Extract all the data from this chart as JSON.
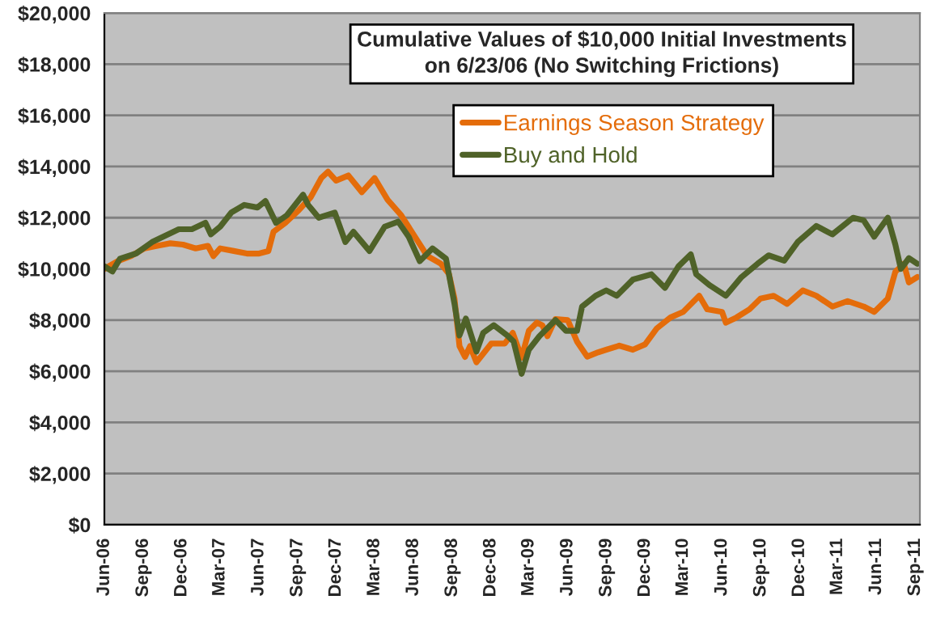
{
  "chart_data": {
    "type": "line",
    "title": "Cumulative Values of $10,000 Initial Investments\non 6/23/06 (No Switching Frictions)",
    "series": [
      {
        "name": "Earnings Season Strategy",
        "color": "#e46c0a",
        "x": [
          "2006-06-01",
          "2006-07-02",
          "2006-08-03",
          "2006-09-04",
          "2006-10-04",
          "2006-11-04",
          "2006-12-04",
          "2007-01-03",
          "2007-02-01",
          "2007-02-14",
          "2007-03-02",
          "2007-04-03",
          "2007-05-04",
          "2007-06-02",
          "2007-06-24",
          "2007-07-06",
          "2007-08-03",
          "2007-09-04",
          "2007-10-02",
          "2007-10-27",
          "2007-11-12",
          "2007-12-01",
          "2007-12-30",
          "2008-01-31",
          "2008-03-01",
          "2008-04-01",
          "2008-05-03",
          "2008-06-01",
          "2008-07-04",
          "2008-08-05",
          "2008-08-24",
          "2008-09-06",
          "2008-09-18",
          "2008-10-01",
          "2008-10-13",
          "2008-10-28",
          "2008-12-02",
          "2009-01-03",
          "2009-01-22",
          "2009-02-12",
          "2009-03-01",
          "2009-03-20",
          "2009-04-02",
          "2009-04-14",
          "2009-05-03",
          "2009-06-01",
          "2009-06-23",
          "2009-07-17",
          "2009-08-12",
          "2009-08-31",
          "2009-10-01",
          "2009-11-02",
          "2009-12-01",
          "2009-12-29",
          "2010-01-30",
          "2010-03-01",
          "2010-04-08",
          "2010-04-27",
          "2010-06-01",
          "2010-06-10",
          "2010-07-05",
          "2010-08-05",
          "2010-08-31",
          "2010-10-01",
          "2010-11-02",
          "2010-12-09",
          "2011-01-10",
          "2011-02-17",
          "2011-03-25",
          "2011-05-02",
          "2011-05-27",
          "2011-06-28",
          "2011-07-16",
          "2011-08-05",
          "2011-08-17",
          "2011-09-06"
        ],
        "values": [
          10000,
          10300,
          10500,
          10800,
          10900,
          11000,
          10950,
          10800,
          10900,
          10500,
          10800,
          10700,
          10600,
          10600,
          10700,
          11450,
          11800,
          12300,
          12800,
          13550,
          13800,
          13450,
          13650,
          13000,
          13550,
          12700,
          12100,
          11350,
          10500,
          10200,
          9800,
          8850,
          6980,
          6560,
          6980,
          6350,
          7080,
          7080,
          7500,
          6530,
          7580,
          7900,
          7800,
          7370,
          8040,
          8000,
          7160,
          6570,
          6740,
          6840,
          7000,
          6840,
          7050,
          7680,
          8100,
          8320,
          8950,
          8420,
          8320,
          7900,
          8100,
          8420,
          8840,
          8950,
          8630,
          9160,
          8950,
          8530,
          8740,
          8530,
          8320,
          8840,
          9890,
          10200,
          9470,
          9680
        ]
      },
      {
        "name": "Buy and Hold",
        "color": "#4f6228",
        "x": [
          "2006-06-01",
          "2006-06-20",
          "2006-07-08",
          "2006-08-15",
          "2006-09-22",
          "2006-10-30",
          "2006-11-24",
          "2006-12-25",
          "2007-01-26",
          "2007-02-08",
          "2007-03-02",
          "2007-03-28",
          "2007-04-28",
          "2007-05-29",
          "2007-06-17",
          "2007-07-12",
          "2007-08-07",
          "2007-09-14",
          "2007-09-26",
          "2007-10-21",
          "2007-11-28",
          "2007-12-23",
          "2008-01-11",
          "2008-02-18",
          "2008-03-25",
          "2008-04-26",
          "2008-05-21",
          "2008-06-16",
          "2008-07-16",
          "2008-08-17",
          "2008-09-06",
          "2008-09-18",
          "2008-10-03",
          "2008-10-28",
          "2008-11-13",
          "2008-12-08",
          "2009-01-09",
          "2009-01-24",
          "2009-02-12",
          "2009-03-01",
          "2009-03-26",
          "2009-05-03",
          "2009-05-28",
          "2009-06-23",
          "2009-07-05",
          "2009-08-06",
          "2009-08-31",
          "2009-09-25",
          "2009-11-02",
          "2009-12-16",
          "2010-01-17",
          "2010-02-18",
          "2010-03-19",
          "2010-04-01",
          "2010-05-02",
          "2010-06-10",
          "2010-07-17",
          "2010-08-24",
          "2010-09-19",
          "2010-10-26",
          "2010-11-27",
          "2011-01-10",
          "2011-02-17",
          "2011-04-07",
          "2011-05-02",
          "2011-05-27",
          "2011-06-28",
          "2011-07-16",
          "2011-07-29",
          "2011-08-17",
          "2011-09-06"
        ],
        "values": [
          10100,
          9900,
          10400,
          10600,
          11050,
          11350,
          11550,
          11550,
          11800,
          11350,
          11650,
          12200,
          12500,
          12400,
          12650,
          11800,
          12100,
          12900,
          12500,
          12000,
          12200,
          11050,
          11450,
          10700,
          11650,
          11850,
          11250,
          10300,
          10800,
          10400,
          8650,
          7400,
          8060,
          6770,
          7500,
          7800,
          7400,
          7160,
          5900,
          6840,
          7370,
          8000,
          7580,
          7580,
          8530,
          8950,
          9160,
          8950,
          9580,
          9790,
          9260,
          10100,
          10570,
          9790,
          9370,
          8950,
          9680,
          10200,
          10530,
          10320,
          11050,
          11680,
          11350,
          12000,
          11900,
          11260,
          12000,
          10950,
          10000,
          10420,
          10200
        ]
      }
    ],
    "xlim": [
      "2006-06-01",
      "2011-09-12"
    ],
    "xticks": [
      {
        "value": "2006-06-01",
        "label": "Jun-06"
      },
      {
        "value": "2006-09-01",
        "label": "Sep-06"
      },
      {
        "value": "2006-12-01",
        "label": "Dec-06"
      },
      {
        "value": "2007-03-01",
        "label": "Mar-07"
      },
      {
        "value": "2007-06-01",
        "label": "Jun-07"
      },
      {
        "value": "2007-09-01",
        "label": "Sep-07"
      },
      {
        "value": "2007-12-01",
        "label": "Dec-07"
      },
      {
        "value": "2008-03-01",
        "label": "Mar-08"
      },
      {
        "value": "2008-06-01",
        "label": "Jun-08"
      },
      {
        "value": "2008-09-01",
        "label": "Sep-08"
      },
      {
        "value": "2008-12-01",
        "label": "Dec-08"
      },
      {
        "value": "2009-03-01",
        "label": "Mar-09"
      },
      {
        "value": "2009-06-01",
        "label": "Jun-09"
      },
      {
        "value": "2009-09-01",
        "label": "Sep-09"
      },
      {
        "value": "2009-12-01",
        "label": "Dec-09"
      },
      {
        "value": "2010-03-01",
        "label": "Mar-10"
      },
      {
        "value": "2010-06-01",
        "label": "Jun-10"
      },
      {
        "value": "2010-09-01",
        "label": "Sep-10"
      },
      {
        "value": "2010-12-01",
        "label": "Dec-10"
      },
      {
        "value": "2011-03-01",
        "label": "Mar-11"
      },
      {
        "value": "2011-06-01",
        "label": "Jun-11"
      },
      {
        "value": "2011-09-01",
        "label": "Sep-11"
      }
    ],
    "ylim": [
      0,
      20000
    ],
    "yticks": [
      {
        "value": 0,
        "label": "$0"
      },
      {
        "value": 2000,
        "label": "$2,000"
      },
      {
        "value": 4000,
        "label": "$4,000"
      },
      {
        "value": 6000,
        "label": "$6,000"
      },
      {
        "value": 8000,
        "label": "$8,000"
      },
      {
        "value": 10000,
        "label": "$10,000"
      },
      {
        "value": 12000,
        "label": "$12,000"
      },
      {
        "value": 14000,
        "label": "$14,000"
      },
      {
        "value": 16000,
        "label": "$16,000"
      },
      {
        "value": 18000,
        "label": "$18,000"
      },
      {
        "value": 20000,
        "label": "$20,000"
      }
    ],
    "grid": "y",
    "legend": "top right",
    "marker": "none",
    "line_style": "solid"
  }
}
